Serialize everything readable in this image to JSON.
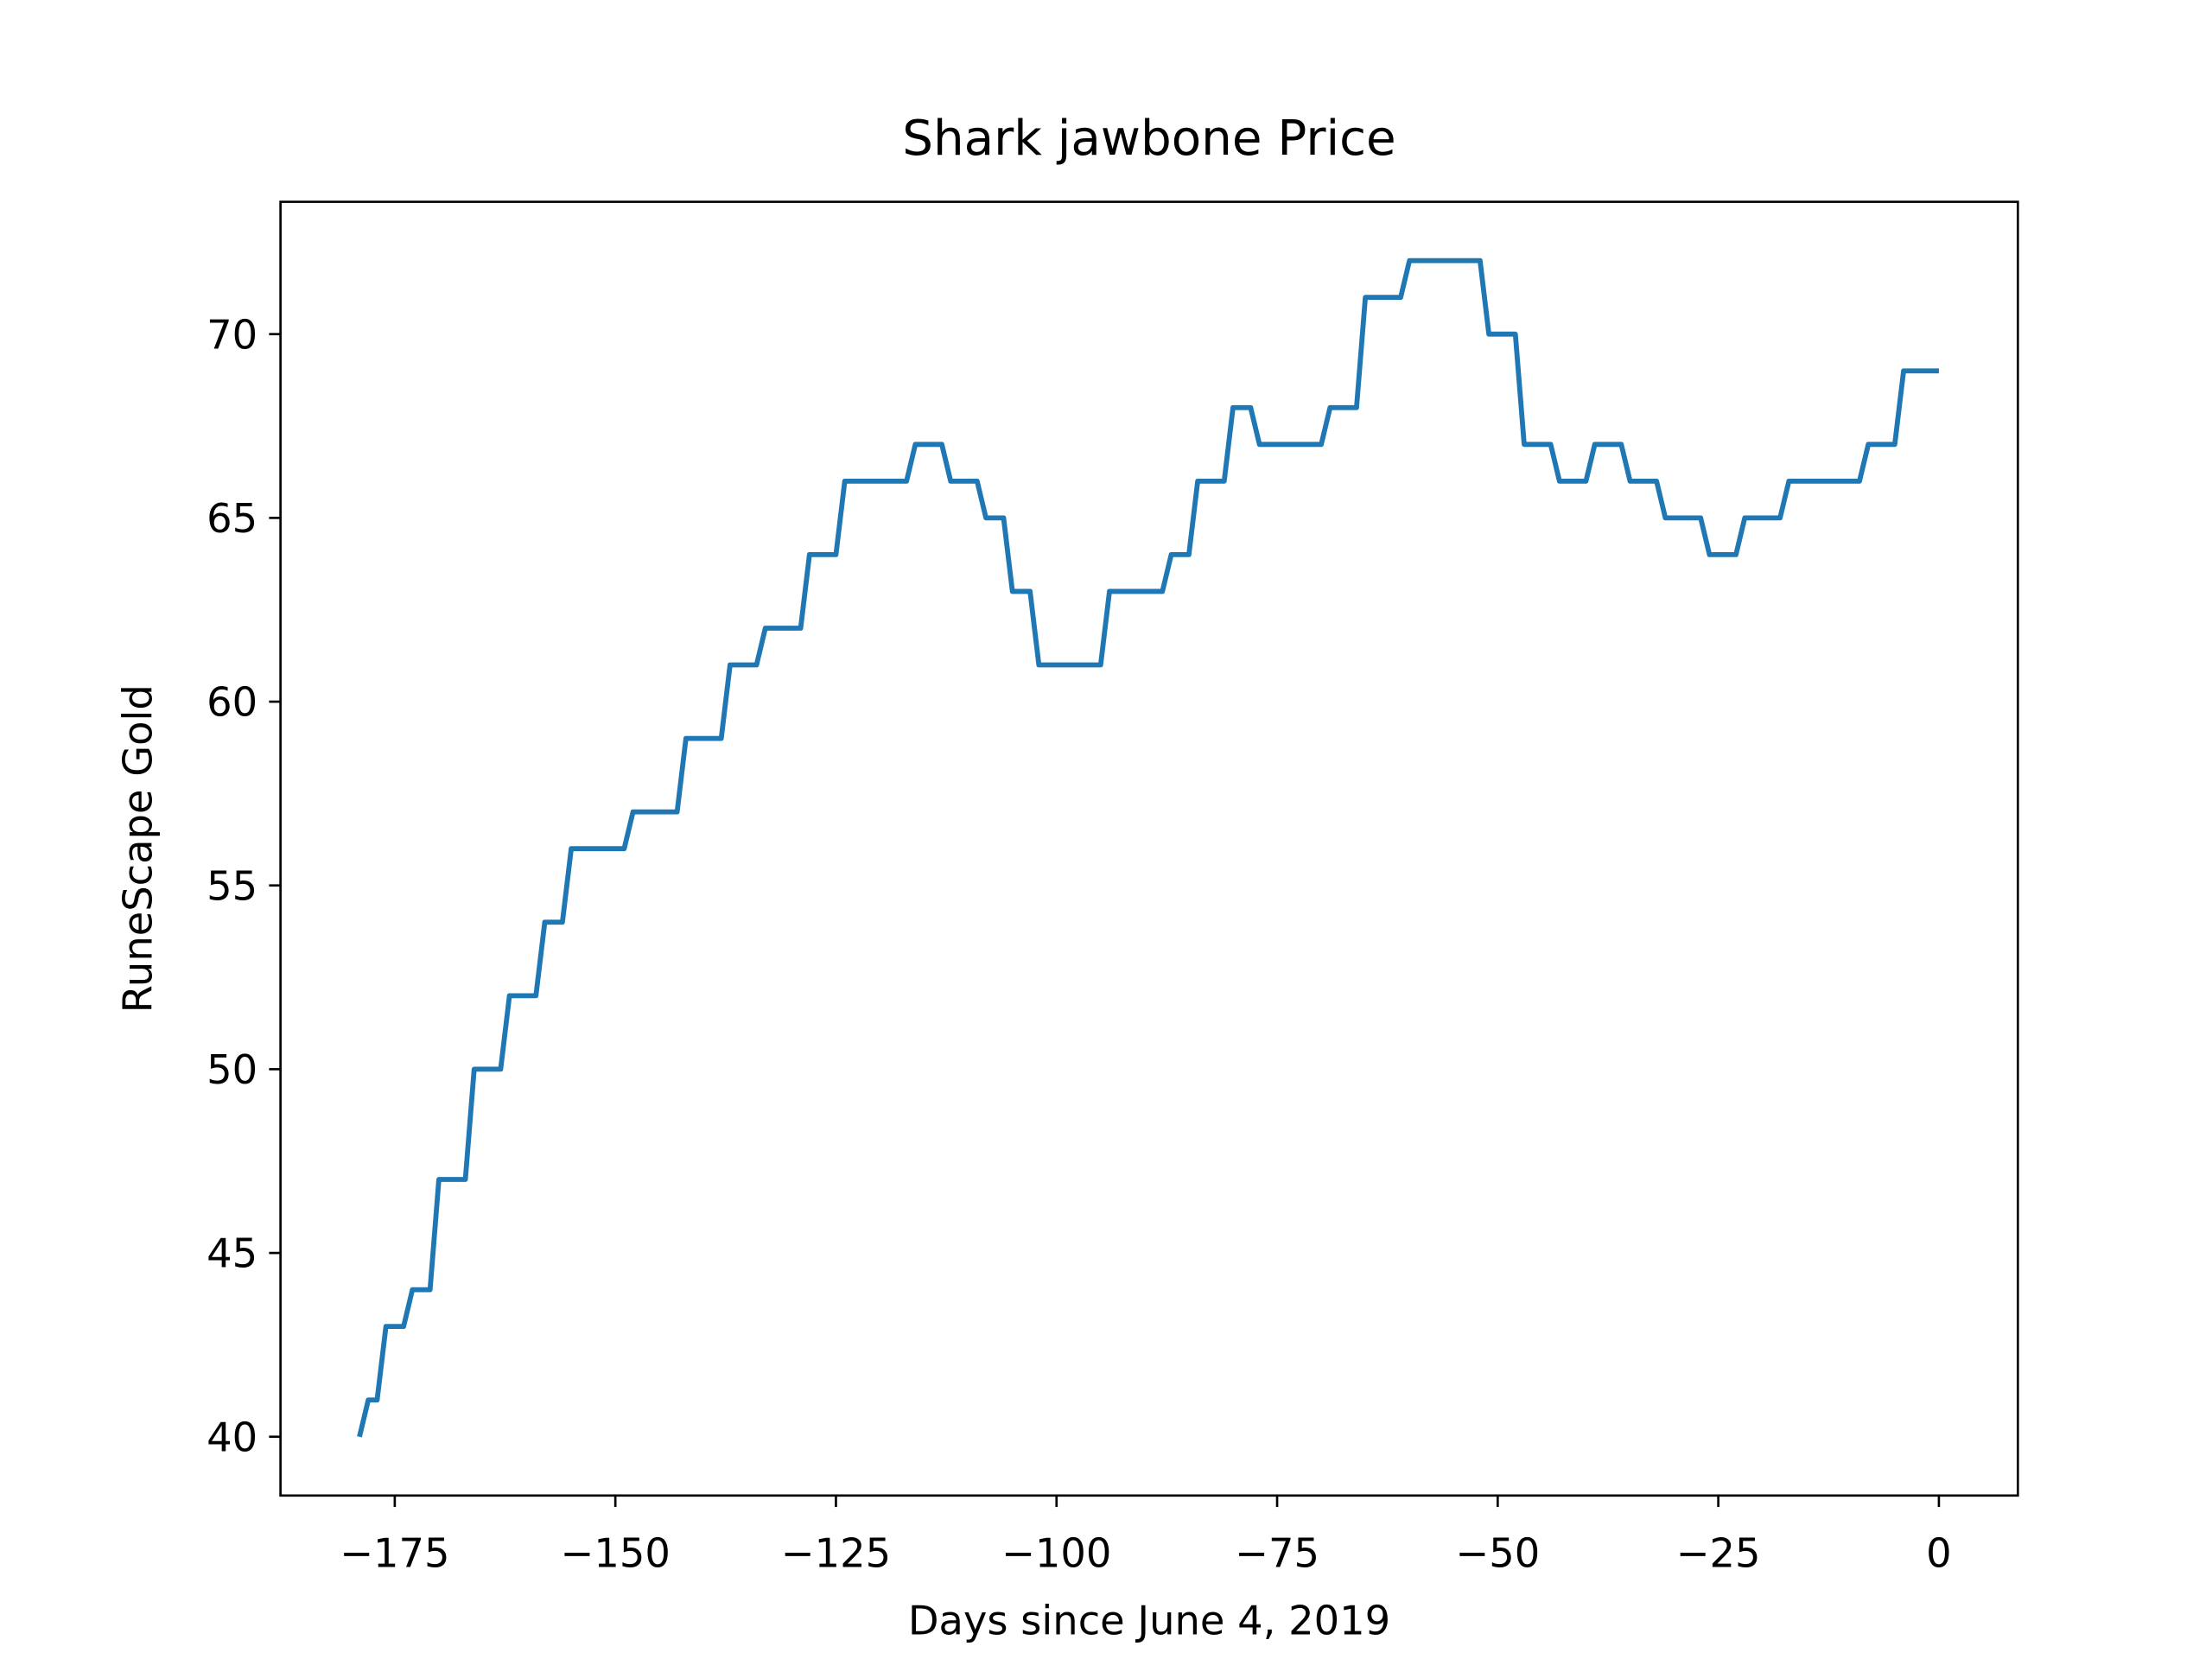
{
  "chart_data": {
    "type": "line",
    "title": "Shark jawbone Price",
    "xlabel": "Days since June 4, 2019",
    "ylabel": "RuneScape Gold",
    "x": [
      -179,
      -178,
      -177,
      -176,
      -175,
      -174,
      -173,
      -172,
      -171,
      -170,
      -169,
      -168,
      -167,
      -166,
      -165,
      -164,
      -163,
      -162,
      -161,
      -160,
      -159,
      -158,
      -157,
      -156,
      -155,
      -154,
      -153,
      -152,
      -151,
      -150,
      -149,
      -148,
      -147,
      -146,
      -145,
      -144,
      -143,
      -142,
      -141,
      -140,
      -139,
      -138,
      -137,
      -136,
      -135,
      -134,
      -133,
      -132,
      -131,
      -130,
      -129,
      -128,
      -127,
      -126,
      -125,
      -124,
      -123,
      -122,
      -121,
      -120,
      -119,
      -118,
      -117,
      -116,
      -115,
      -114,
      -113,
      -112,
      -111,
      -110,
      -109,
      -108,
      -107,
      -106,
      -105,
      -104,
      -103,
      -102,
      -101,
      -100,
      -99,
      -98,
      -97,
      -96,
      -95,
      -94,
      -93,
      -92,
      -91,
      -90,
      -89,
      -88,
      -87,
      -86,
      -85,
      -84,
      -83,
      -82,
      -81,
      -80,
      -79,
      -78,
      -77,
      -76,
      -75,
      -74,
      -73,
      -72,
      -71,
      -70,
      -69,
      -68,
      -67,
      -66,
      -65,
      -64,
      -63,
      -62,
      -61,
      -60,
      -59,
      -58,
      -57,
      -56,
      -55,
      -54,
      -53,
      -52,
      -51,
      -50,
      -49,
      -48,
      -47,
      -46,
      -45,
      -44,
      -43,
      -42,
      -41,
      -40,
      -39,
      -38,
      -37,
      -36,
      -35,
      -34,
      -33,
      -32,
      -31,
      -30,
      -29,
      -28,
      -27,
      -26,
      -25,
      -24,
      -23,
      -22,
      -21,
      -20,
      -19,
      -18,
      -17,
      -16,
      -15,
      -14,
      -13,
      -12,
      -11,
      -10,
      -9,
      -8,
      -7,
      -6,
      -5,
      -4,
      -3,
      -2,
      -1,
      0
    ],
    "series": [
      {
        "name": "Shark jawbone",
        "color": "#1f77b4",
        "values": [
          40,
          41,
          41,
          43,
          43,
          43,
          44,
          44,
          44,
          47,
          47,
          47,
          47,
          50,
          50,
          50,
          50,
          52,
          52,
          52,
          52,
          54,
          54,
          54,
          56,
          56,
          56,
          56,
          56,
          56,
          56,
          57,
          57,
          57,
          57,
          57,
          57,
          59,
          59,
          59,
          59,
          59,
          61,
          61,
          61,
          61,
          62,
          62,
          62,
          62,
          62,
          64,
          64,
          64,
          64,
          66,
          66,
          66,
          66,
          66,
          66,
          66,
          66,
          67,
          67,
          67,
          67,
          66,
          66,
          66,
          66,
          65,
          65,
          65,
          63,
          63,
          63,
          61,
          61,
          61,
          61,
          61,
          61,
          61,
          61,
          63,
          63,
          63,
          63,
          63,
          63,
          63,
          64,
          64,
          64,
          66,
          66,
          66,
          66,
          68,
          68,
          68,
          67,
          67,
          67,
          67,
          67,
          67,
          67,
          67,
          68,
          68,
          68,
          68,
          71,
          71,
          71,
          71,
          71,
          72,
          72,
          72,
          72,
          72,
          72,
          72,
          72,
          72,
          70,
          70,
          70,
          70,
          67,
          67,
          67,
          67,
          66,
          66,
          66,
          66,
          67,
          67,
          67,
          67,
          66,
          66,
          66,
          66,
          65,
          65,
          65,
          65,
          65,
          64,
          64,
          64,
          64,
          65,
          65,
          65,
          65,
          65,
          66,
          66,
          66,
          66,
          66,
          66,
          66,
          66,
          66,
          67,
          67,
          67,
          67,
          69,
          69,
          69,
          69,
          69
        ]
      }
    ],
    "xlim": [
      -187.95,
      8.95
    ],
    "ylim": [
      38.4,
      73.6
    ],
    "xticks": [
      {
        "value": -175,
        "label": "−175"
      },
      {
        "value": -150,
        "label": "−150"
      },
      {
        "value": -125,
        "label": "−125"
      },
      {
        "value": -100,
        "label": "−100"
      },
      {
        "value": -75,
        "label": "−75"
      },
      {
        "value": -50,
        "label": "−50"
      },
      {
        "value": -25,
        "label": "−25"
      },
      0
    ],
    "yticks": [
      40,
      45,
      50,
      55,
      60,
      65,
      70
    ]
  }
}
